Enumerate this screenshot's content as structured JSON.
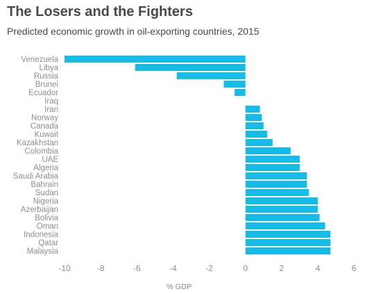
{
  "header": {
    "title": "The Losers and the Fighters",
    "subtitle": "Predicted economic growth in oil-exporting countries, 2015"
  },
  "colors": {
    "bar": "#16bce8",
    "axis": "#8a8f96"
  },
  "chart_data": {
    "type": "bar",
    "orientation": "horizontal",
    "title": "The Losers and the Fighters",
    "subtitle": "Predicted economic growth in oil-exporting countries, 2015",
    "xlabel": "% GDP",
    "ylabel": "",
    "xlim": [
      -10,
      6
    ],
    "xticks": [
      -10,
      -8,
      -6,
      -4,
      -2,
      0,
      2,
      4,
      6
    ],
    "grid": false,
    "categories": [
      "Venezuela",
      "Libya",
      "Russia",
      "Brunei",
      "Ecuador",
      "Iraq",
      "Iran",
      "Norway",
      "Canada",
      "Kuwait",
      "Kazakhstan",
      "Colombia",
      "UAE",
      "Algeria",
      "Saudi Arabia",
      "Bahrain",
      "Sudan",
      "Nigeria",
      "Azerbaijan",
      "Bolivia",
      "Oman",
      "Indonesia",
      "Qatar",
      "Malaysia"
    ],
    "values": [
      -10.0,
      -6.1,
      -3.8,
      -1.2,
      -0.6,
      0.0,
      0.8,
      0.9,
      1.0,
      1.2,
      1.5,
      2.5,
      3.0,
      3.0,
      3.4,
      3.4,
      3.5,
      4.0,
      4.0,
      4.1,
      4.4,
      4.7,
      4.7,
      4.7
    ]
  }
}
